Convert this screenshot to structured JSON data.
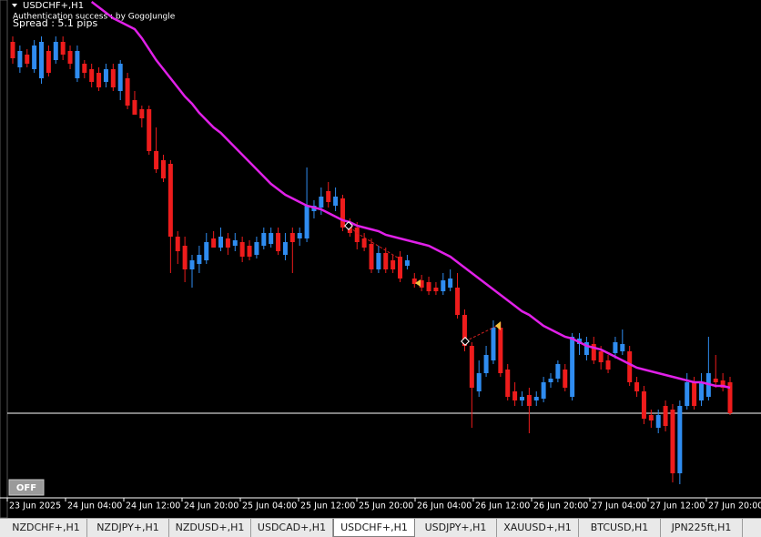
{
  "chart_data": {
    "type": "candlestick",
    "title": "USDCHF+,H1",
    "annotations": [
      "Authentication success : by GogoJungle",
      "Spread : 5.1 pips"
    ],
    "button": "OFF",
    "up_color": "#2f8cf0",
    "down_color": "#ee1c1c",
    "ylim": [
      0.79575,
      0.823
    ],
    "price_line": 0.8003,
    "price_line_color": "#ffffff",
    "x_labels": [
      "23 Jun 2025",
      "24 Jun 04:00",
      "24 Jun 12:00",
      "24 Jun 20:00",
      "25 Jun 04:00",
      "25 Jun 12:00",
      "25 Jun 20:00",
      "26 Jun 04:00",
      "26 Jun 12:00",
      "26 Jun 20:00",
      "27 Jun 04:00",
      "27 Jun 12:00",
      "27 Jun 20:00"
    ],
    "candles": [
      [
        0.8207,
        0.821,
        0.8195,
        0.8198
      ],
      [
        0.8193,
        0.8205,
        0.819,
        0.8202
      ],
      [
        0.82,
        0.8203,
        0.8193,
        0.8195
      ],
      [
        0.8192,
        0.8208,
        0.819,
        0.8205
      ],
      [
        0.8187,
        0.821,
        0.8184,
        0.8207
      ],
      [
        0.8202,
        0.8205,
        0.8188,
        0.819
      ],
      [
        0.8197,
        0.821,
        0.8195,
        0.8207
      ],
      [
        0.8207,
        0.821,
        0.8197,
        0.82
      ],
      [
        0.8202,
        0.8205,
        0.8192,
        0.8195
      ],
      [
        0.8187,
        0.8205,
        0.8185,
        0.8202
      ],
      [
        0.8195,
        0.8197,
        0.8187,
        0.819
      ],
      [
        0.8192,
        0.8195,
        0.8182,
        0.8185
      ],
      [
        0.819,
        0.8193,
        0.818,
        0.8182
      ],
      [
        0.8185,
        0.8195,
        0.8182,
        0.8192
      ],
      [
        0.8192,
        0.8195,
        0.818,
        0.8182
      ],
      [
        0.818,
        0.8197,
        0.8175,
        0.8195
      ],
      [
        0.8187,
        0.819,
        0.817,
        0.8172
      ],
      [
        0.8175,
        0.818,
        0.8167,
        0.8167
      ],
      [
        0.817,
        0.8172,
        0.816,
        0.8165
      ],
      [
        0.817,
        0.8172,
        0.8145,
        0.8147
      ],
      [
        0.8147,
        0.816,
        0.8135,
        0.8137
      ],
      [
        0.8142,
        0.8145,
        0.813,
        0.8132
      ],
      [
        0.814,
        0.8142,
        0.808,
        0.81
      ],
      [
        0.81,
        0.8103,
        0.8085,
        0.8092
      ],
      [
        0.8095,
        0.81,
        0.8075,
        0.8082
      ],
      [
        0.8082,
        0.809,
        0.8072,
        0.8087
      ],
      [
        0.8085,
        0.8095,
        0.808,
        0.809
      ],
      [
        0.8087,
        0.8102,
        0.8085,
        0.8097
      ],
      [
        0.8099,
        0.8103,
        0.8094,
        0.8094
      ],
      [
        0.8094,
        0.8105,
        0.8092,
        0.81
      ],
      [
        0.8099,
        0.8102,
        0.809,
        0.8094
      ],
      [
        0.8095,
        0.8102,
        0.8092,
        0.8098
      ],
      [
        0.8097,
        0.81,
        0.8086,
        0.8089
      ],
      [
        0.8095,
        0.8098,
        0.8087,
        0.8089
      ],
      [
        0.809,
        0.81,
        0.8088,
        0.8097
      ],
      [
        0.8095,
        0.8105,
        0.8093,
        0.8102
      ],
      [
        0.8096,
        0.8105,
        0.8094,
        0.8102
      ],
      [
        0.8102,
        0.8105,
        0.809,
        0.8092
      ],
      [
        0.809,
        0.8102,
        0.8087,
        0.8097
      ],
      [
        0.8102,
        0.8105,
        0.808,
        0.8097
      ],
      [
        0.8099,
        0.8105,
        0.8095,
        0.8102
      ],
      [
        0.8099,
        0.8138,
        0.8097,
        0.8117
      ],
      [
        0.8114,
        0.812,
        0.811,
        0.8117
      ],
      [
        0.8116,
        0.8127,
        0.8112,
        0.8122
      ],
      [
        0.8125,
        0.813,
        0.8116,
        0.8119
      ],
      [
        0.8117,
        0.8127,
        0.8114,
        0.8122
      ],
      [
        0.8121,
        0.8123,
        0.8103,
        0.8105
      ],
      [
        0.8107,
        0.811,
        0.81,
        0.8102
      ],
      [
        0.8105,
        0.8108,
        0.8093,
        0.8097
      ],
      [
        0.8099,
        0.8102,
        0.8092,
        0.8094
      ],
      [
        0.8096,
        0.8099,
        0.808,
        0.8082
      ],
      [
        0.8082,
        0.8095,
        0.808,
        0.8091
      ],
      [
        0.8091,
        0.8094,
        0.808,
        0.8082
      ],
      [
        0.8087,
        0.809,
        0.808,
        0.8082
      ],
      [
        0.8089,
        0.8092,
        0.8075,
        0.8077
      ],
      [
        0.8084,
        0.809,
        0.8082,
        0.8087
      ],
      [
        0.8077,
        0.808,
        0.8072,
        0.8074
      ],
      [
        0.8076,
        0.8079,
        0.807,
        0.8072
      ],
      [
        0.8075,
        0.8078,
        0.8068,
        0.807
      ],
      [
        0.8072,
        0.8075,
        0.8068,
        0.807
      ],
      [
        0.807,
        0.808,
        0.8068,
        0.8076
      ],
      [
        0.8072,
        0.8082,
        0.807,
        0.8077
      ],
      [
        0.8072,
        0.808,
        0.8055,
        0.8057
      ],
      [
        0.8057,
        0.806,
        0.8037,
        0.804
      ],
      [
        0.804,
        0.8042,
        0.7995,
        0.8017
      ],
      [
        0.8015,
        0.8032,
        0.8012,
        0.8025
      ],
      [
        0.8025,
        0.804,
        0.8023,
        0.8035
      ],
      [
        0.8032,
        0.8054,
        0.803,
        0.805
      ],
      [
        0.805,
        0.8053,
        0.8023,
        0.8025
      ],
      [
        0.8027,
        0.803,
        0.801,
        0.8012
      ],
      [
        0.8015,
        0.802,
        0.8007,
        0.801
      ],
      [
        0.801,
        0.8015,
        0.8007,
        0.8012
      ],
      [
        0.8013,
        0.8017,
        0.7992,
        0.8007
      ],
      [
        0.801,
        0.8015,
        0.8007,
        0.8012
      ],
      [
        0.8011,
        0.8023,
        0.8009,
        0.802
      ],
      [
        0.802,
        0.8025,
        0.8017,
        0.8022
      ],
      [
        0.8022,
        0.8032,
        0.802,
        0.803
      ],
      [
        0.8027,
        0.803,
        0.8015,
        0.8017
      ],
      [
        0.8012,
        0.8047,
        0.801,
        0.8045
      ],
      [
        0.8041,
        0.8047,
        0.8035,
        0.8044
      ],
      [
        0.8035,
        0.8045,
        0.8032,
        0.8042
      ],
      [
        0.8041,
        0.8045,
        0.803,
        0.8032
      ],
      [
        0.8037,
        0.804,
        0.8027,
        0.8031
      ],
      [
        0.8032,
        0.8035,
        0.8025,
        0.8027
      ],
      [
        0.8036,
        0.8045,
        0.8033,
        0.8042
      ],
      [
        0.8037,
        0.8049,
        0.8035,
        0.8041
      ],
      [
        0.8037,
        0.804,
        0.8018,
        0.802
      ],
      [
        0.802,
        0.8023,
        0.8012,
        0.8015
      ],
      [
        0.8015,
        0.8018,
        0.7997,
        0.8
      ],
      [
        0.8002,
        0.8005,
        0.7995,
        0.7999
      ],
      [
        0.7995,
        0.8005,
        0.7992,
        0.8002
      ],
      [
        0.8007,
        0.801,
        0.7993,
        0.7996
      ],
      [
        0.8005,
        0.8008,
        0.7965,
        0.797
      ],
      [
        0.797,
        0.801,
        0.7964,
        0.8007
      ],
      [
        0.8007,
        0.8025,
        0.8005,
        0.802
      ],
      [
        0.802,
        0.8023,
        0.8005,
        0.8007
      ],
      [
        0.801,
        0.8025,
        0.8007,
        0.802
      ],
      [
        0.8012,
        0.8045,
        0.801,
        0.8025
      ],
      [
        0.8022,
        0.8035,
        0.8017,
        0.802
      ],
      [
        0.8021,
        0.8025,
        0.8015,
        0.8017
      ],
      [
        0.802,
        0.8023,
        0.8002,
        0.8003
      ]
    ],
    "ma": {
      "color": "#e020e8",
      "values": [
        null,
        null,
        null,
        null,
        null,
        null,
        null,
        null,
        null,
        null,
        null,
        0.8229,
        0.8226,
        0.8223,
        0.822,
        0.8218,
        0.8216,
        0.8214,
        0.8209,
        0.8203,
        0.8197,
        0.8192,
        0.8187,
        0.8182,
        0.8177,
        0.8173,
        0.8168,
        0.8164,
        0.816,
        0.8157,
        0.8153,
        0.8149,
        0.8145,
        0.8141,
        0.8137,
        0.8133,
        0.8129,
        0.8126,
        0.8123,
        0.8121,
        0.8119,
        0.8117,
        0.8116,
        0.8115,
        0.8113,
        0.8111,
        0.8109,
        0.8108,
        0.8106,
        0.8105,
        0.8104,
        0.8103,
        0.8101,
        0.81,
        0.8099,
        0.8098,
        0.8097,
        0.8096,
        0.8095,
        0.8093,
        0.8091,
        0.8089,
        0.8086,
        0.8083,
        0.808,
        0.8077,
        0.8074,
        0.8071,
        0.8068,
        0.8065,
        0.8062,
        0.8059,
        0.8057,
        0.8054,
        0.8051,
        0.8049,
        0.8047,
        0.8045,
        0.8044,
        0.8042,
        0.804,
        0.8039,
        0.8038,
        0.8036,
        0.8034,
        0.8032,
        0.803,
        0.8028,
        0.8027,
        0.8026,
        0.8025,
        0.8024,
        0.8023,
        0.8022,
        0.8021,
        0.802,
        0.802,
        0.8019,
        0.8018,
        0.8018,
        0.8017
      ]
    }
  },
  "tabs": [
    "NZDCHF+,H1",
    "NZDJPY+,H1",
    "NZDUSD+,H1",
    "USDCAD+,H1",
    "USDCHF+,H1",
    "USDJPY+,H1",
    "XAUUSD+,H1",
    "BTCUSD,H1",
    "JPN225ft,H1"
  ],
  "active_tab": 4
}
